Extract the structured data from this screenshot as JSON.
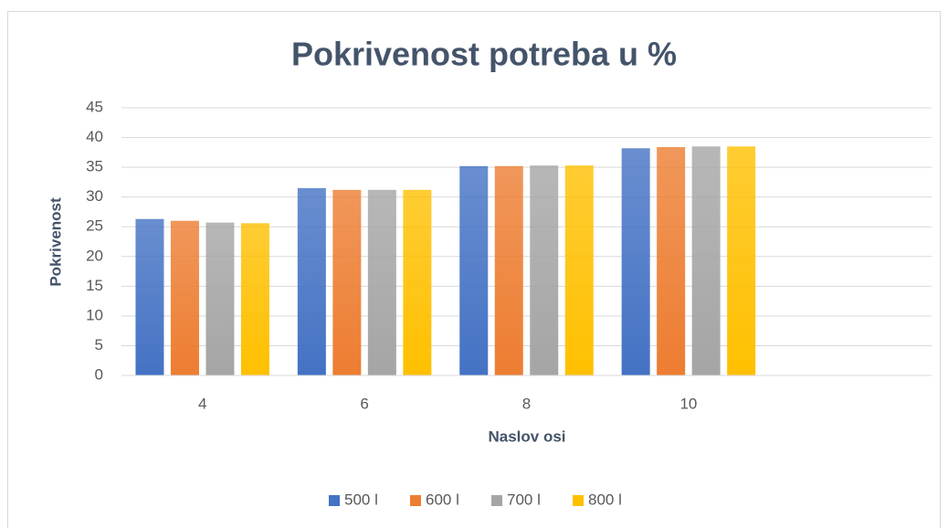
{
  "chart_data": {
    "type": "bar",
    "title": "Pokrivenost potreba u %",
    "xlabel": "Naslov osi",
    "ylabel": "Pokrivenost",
    "categories": [
      "4",
      "6",
      "8",
      "10",
      null
    ],
    "series": [
      {
        "name": "500 l",
        "color": "#4472c4",
        "values": [
          26.3,
          31.5,
          35.2,
          38.2,
          null
        ]
      },
      {
        "name": "600 l",
        "color": "#ed7d31",
        "values": [
          26.0,
          31.2,
          35.2,
          38.4,
          null
        ]
      },
      {
        "name": "700 l",
        "color": "#a5a5a5",
        "values": [
          25.7,
          31.2,
          35.3,
          38.5,
          null
        ]
      },
      {
        "name": "800 l",
        "color": "#ffc000",
        "values": [
          25.6,
          31.2,
          35.3,
          38.5,
          null
        ]
      }
    ],
    "ylim": [
      0,
      45
    ],
    "yticks": [
      0,
      5,
      10,
      15,
      20,
      25,
      30,
      35,
      40,
      45
    ],
    "grid": true,
    "legend": "bottom"
  }
}
